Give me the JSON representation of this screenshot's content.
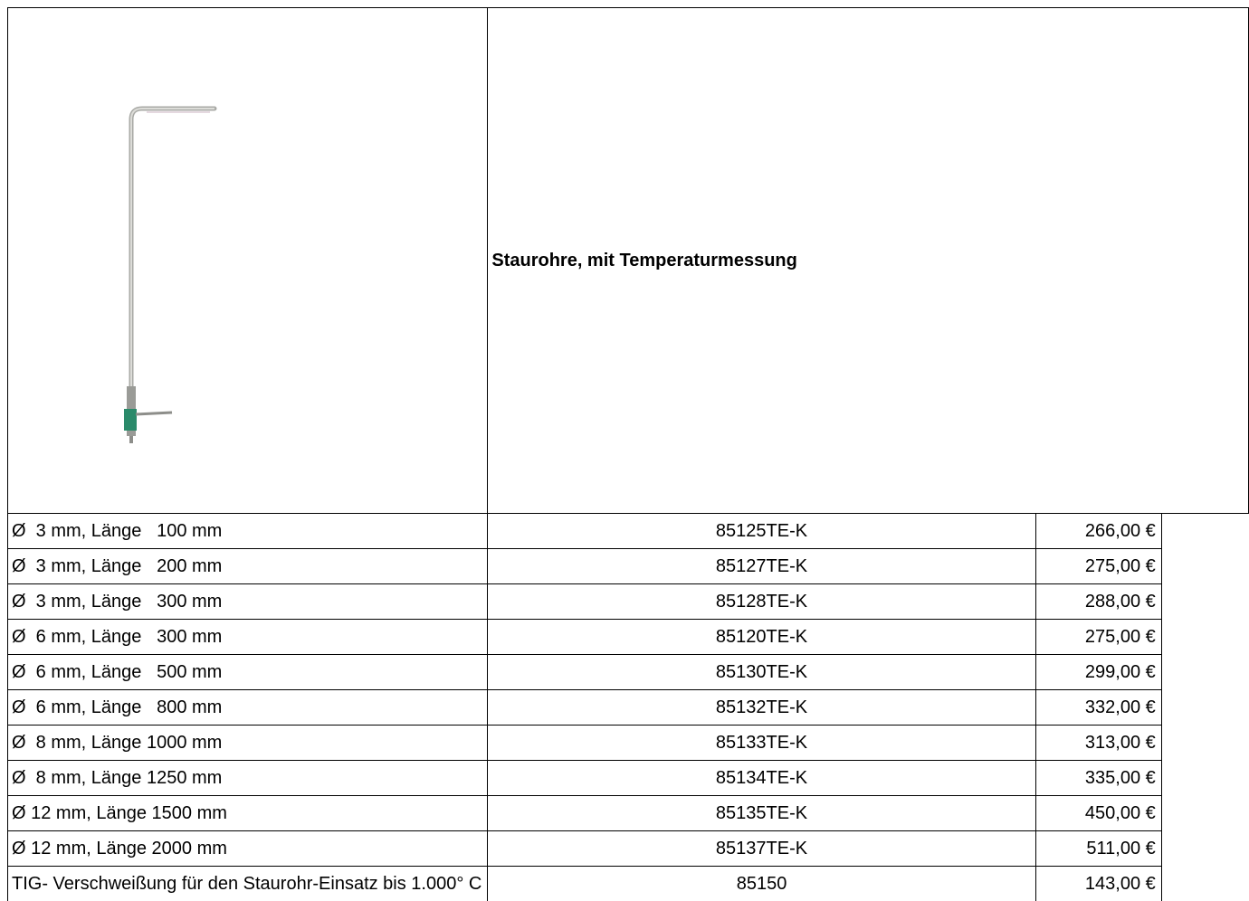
{
  "table": {
    "title": "Staurohre, mit Temperaturmessung",
    "rows": [
      [
        "Ø  3 mm, Länge   100 mm",
        "85125TE-K",
        "266,00 €"
      ],
      [
        "Ø  3 mm, Länge   200 mm",
        "85127TE-K",
        "275,00 €"
      ],
      [
        "Ø  3 mm, Länge   300 mm",
        "85128TE-K",
        "288,00 €"
      ],
      [
        "Ø  6 mm, Länge   300 mm",
        "85120TE-K",
        "275,00 €"
      ],
      [
        "Ø  6 mm, Länge   500 mm",
        "85130TE-K",
        "299,00 €"
      ],
      [
        "Ø  6 mm, Länge   800 mm",
        "85132TE-K",
        "332,00 €"
      ],
      [
        "Ø  8 mm, Länge 1000 mm",
        "85133TE-K",
        "313,00 €"
      ],
      [
        "Ø  8 mm, Länge 1250 mm",
        "85134TE-K",
        "335,00 €"
      ],
      [
        "Ø 12 mm, Länge 1500 mm",
        "85135TE-K",
        "450,00 €"
      ],
      [
        "Ø 12 mm, Länge 2000 mm",
        "85137TE-K",
        "511,00 €"
      ],
      [
        "TIG- Verschweißung für den Staurohr-Einsatz bis 1.000° C",
        "85150",
        "143,00 €"
      ]
    ]
  }
}
